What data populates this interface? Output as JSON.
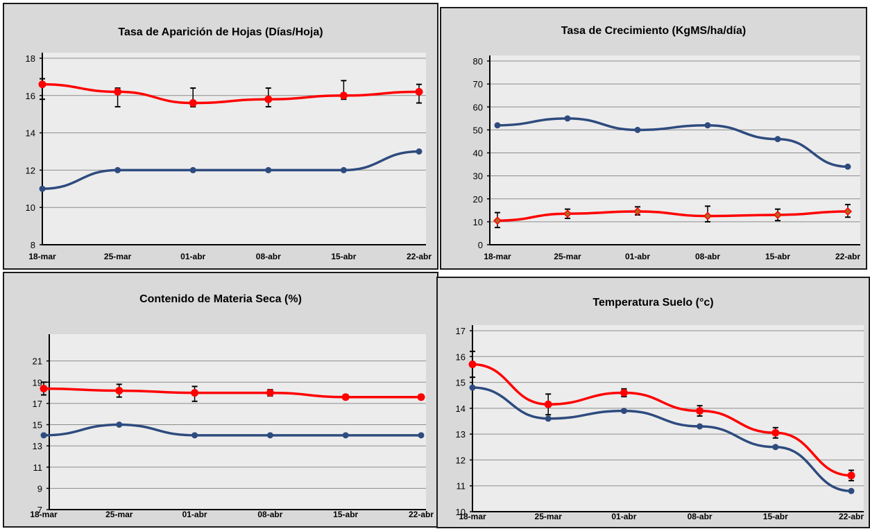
{
  "chart_data": [
    {
      "type": "line",
      "title": "Tasa de Aparición de Hojas (Días/Hoja)",
      "categories": [
        "18-mar",
        "25-mar",
        "01-abr",
        "08-abr",
        "15-abr",
        "22-abr"
      ],
      "ylim": [
        8,
        18
      ],
      "yticks": [
        8,
        10,
        12,
        14,
        16,
        18
      ],
      "grid": true,
      "series": [
        {
          "color": "#ff0000",
          "values": [
            16.6,
            16.2,
            15.6,
            15.8,
            16.0,
            16.2
          ],
          "error_high": [
            16.9,
            16.4,
            16.4,
            16.4,
            16.8,
            16.6
          ],
          "error_low": [
            15.8,
            15.4,
            15.4,
            15.4,
            15.8,
            15.6
          ]
        },
        {
          "color": "#2e4b7e",
          "values": [
            11,
            12,
            12,
            12,
            12,
            13
          ]
        }
      ]
    },
    {
      "type": "line",
      "title": "Tasa de Crecimiento (KgMS/ha/día)",
      "categories": [
        "18-mar",
        "25-mar",
        "01-abr",
        "08-abr",
        "15-abr",
        "22-abr"
      ],
      "ylim": [
        0,
        80
      ],
      "yticks": [
        0,
        10,
        20,
        30,
        40,
        50,
        60,
        70,
        80
      ],
      "grid": true,
      "series": [
        {
          "color": "#2e4b7e",
          "values": [
            52,
            55,
            50,
            52,
            46,
            34
          ]
        },
        {
          "color": "#ff0000",
          "marker_color": "#b5651d",
          "values": [
            10.5,
            13.5,
            14.5,
            12.5,
            13.0,
            14.5
          ],
          "error_high": [
            14.0,
            15.5,
            16.5,
            16.8,
            15.5,
            17.5
          ],
          "error_low": [
            7.5,
            11.5,
            13.0,
            10.0,
            10.5,
            12.0
          ]
        }
      ]
    },
    {
      "type": "line",
      "title": "Contenido de Materia Seca (%)",
      "categories": [
        "18-mar",
        "25-mar",
        "01-abr",
        "08-abr",
        "15-abr",
        "22-abr"
      ],
      "ylim": [
        7,
        23
      ],
      "yticks": [
        7,
        9,
        11,
        13,
        15,
        17,
        19,
        21
      ],
      "grid": true,
      "series": [
        {
          "color": "#ff0000",
          "values": [
            18.4,
            18.2,
            18.0,
            18.0,
            17.6,
            17.6
          ],
          "error_high": [
            19.0,
            18.8,
            18.6,
            18.3,
            17.8,
            17.8
          ],
          "error_low": [
            17.8,
            17.6,
            17.2,
            17.7,
            17.4,
            17.4
          ]
        },
        {
          "color": "#2e4b7e",
          "values": [
            14,
            15,
            14,
            14,
            14,
            14
          ]
        }
      ]
    },
    {
      "type": "line",
      "title": "Temperatura Suelo (°c)",
      "categories": [
        "18-mar",
        "25-mar",
        "01-abr",
        "08-abr",
        "15-abr",
        "22-abr"
      ],
      "ylim": [
        10,
        17
      ],
      "yticks": [
        10,
        11,
        12,
        13,
        14,
        15,
        16,
        17
      ],
      "grid": true,
      "series": [
        {
          "color": "#2e4b7e",
          "values": [
            14.8,
            13.6,
            13.9,
            13.3,
            12.5,
            10.8
          ]
        },
        {
          "color": "#ff0000",
          "values": [
            15.7,
            14.15,
            14.6,
            13.9,
            13.05,
            11.4
          ],
          "error_high": [
            16.2,
            14.55,
            14.75,
            14.1,
            13.25,
            11.6
          ],
          "error_low": [
            15.2,
            13.75,
            14.45,
            13.7,
            12.85,
            11.2
          ]
        }
      ]
    }
  ]
}
